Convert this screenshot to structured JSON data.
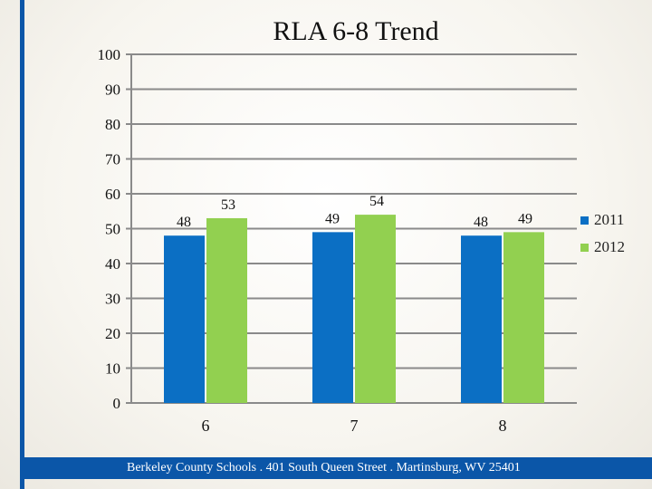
{
  "chart_data": {
    "type": "bar",
    "title": "RLA 6-8 Trend",
    "categories": [
      "6",
      "7",
      "8"
    ],
    "series": [
      {
        "name": "2011",
        "values": [
          48,
          49,
          48
        ],
        "color": "#0b6fc4"
      },
      {
        "name": "2012",
        "values": [
          53,
          54,
          49
        ],
        "color": "#92d050"
      }
    ],
    "ylim": [
      0,
      100
    ],
    "yticks": [
      0,
      10,
      20,
      30,
      40,
      50,
      60,
      70,
      80,
      90,
      100
    ],
    "xlabel": "",
    "ylabel": "",
    "grid": true,
    "legend_position": "right"
  },
  "footer": {
    "text": "Berkeley County Schools . 401 South Queen Street . Martinsburg, WV  25401"
  }
}
